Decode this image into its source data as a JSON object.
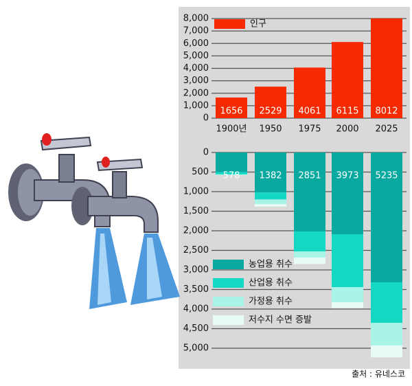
{
  "chart_data": [
    {
      "type": "bar",
      "categories": [
        "1900년",
        "1950",
        "1975",
        "2000",
        "2025"
      ],
      "series": [
        {
          "name": "인구",
          "color": "#f52a00",
          "values": [
            1656,
            2529,
            4061,
            6115,
            8012
          ]
        }
      ],
      "ylim": [
        0,
        8000
      ],
      "yticks": [
        0,
        {
          "value": 1000,
          "label": "1,000"
        },
        {
          "value": 2000,
          "label": "2,000"
        },
        {
          "value": 3000,
          "label": "3,000"
        },
        {
          "value": 4000,
          "label": "4,000"
        },
        {
          "value": 5000,
          "label": "5,000"
        },
        {
          "value": 6000,
          "label": "6,000"
        },
        {
          "value": 7000,
          "label": "7,000"
        },
        {
          "value": 8000,
          "label": "8,000"
        }
      ],
      "grid": true,
      "legend": "top-left"
    },
    {
      "type": "stacked_bar",
      "inverted": true,
      "series": [
        {
          "name": "농업용 취수",
          "color": "#0aa9a0",
          "values": [
            500,
            1020,
            2018,
            2088,
            3316
          ]
        },
        {
          "name": "산업용 취수",
          "color": "#14d8c4",
          "values": [
            60,
            180,
            509,
            1351,
            1035
          ]
        },
        {
          "name": "가정용 취수",
          "color": "#a8f5e8",
          "values": [
            18,
            120,
            158,
            386,
            579
          ]
        },
        {
          "name": "저수지 수면 증발",
          "color": "#e8fbf5",
          "values": [
            0,
            62,
            166,
            148,
            305
          ]
        }
      ],
      "totals": [
        578,
        1382,
        2851,
        3973,
        5235
      ],
      "ylim": [
        0,
        5500
      ],
      "yticks": [
        0,
        500,
        {
          "value": 1000,
          "label": "1,000"
        },
        {
          "value": 1500,
          "label": "1,500"
        },
        {
          "value": 2000,
          "label": "2,000"
        },
        {
          "value": 2500,
          "label": "2,500"
        },
        {
          "value": 3000,
          "label": "3,000"
        },
        {
          "value": 3500,
          "label": "3,500"
        },
        {
          "value": 4000,
          "label": "4,000"
        },
        {
          "value": 4500,
          "label": "4,500"
        },
        {
          "value": 5000,
          "label": "5,000"
        }
      ],
      "grid": true,
      "legend": "bottom-left"
    }
  ],
  "source": "출처 : 유네스코"
}
